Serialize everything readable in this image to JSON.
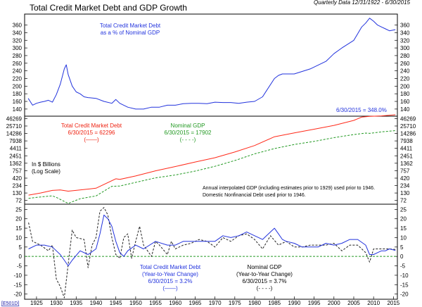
{
  "chart_data": {
    "type": "line",
    "title": "Total Credit Market Debt and GDP Growth",
    "subtitle": "Quarterly Data 12/31/1922 - 6/30/2015",
    "source_code": "[E501D]",
    "x_ticks": [
      "1925",
      "1930",
      "1935",
      "1940",
      "1945",
      "1950",
      "1955",
      "1960",
      "1965",
      "1970",
      "1975",
      "1980",
      "1985",
      "1990",
      "1995",
      "2000",
      "2005",
      "2010",
      "2015"
    ],
    "xlim": [
      1922,
      2016
    ],
    "colors": {
      "debt": "#ff2a1a",
      "gdp": "#229922",
      "ratio": "#2233dd",
      "growth_debt": "#2233dd",
      "growth_gdp": "#222222",
      "ann_blue": "#2233dd",
      "ann_red": "#ee2211",
      "ann_green": "#229922"
    },
    "panels": {
      "ratio": {
        "label": "Total Credit Market Debt\nas a % of Nominal GDP",
        "last_value_label": "6/30/2015 = 348.0%",
        "ylim": [
          125,
          385
        ],
        "y_ticks": [
          "140",
          "160",
          "180",
          "200",
          "220",
          "240",
          "260",
          "280",
          "300",
          "320",
          "340",
          "360"
        ],
        "series": [
          {
            "name": "Total Credit Market Debt as a % of Nominal GDP",
            "x": [
              1922.9,
              1924,
              1925,
              1926,
              1927,
              1928,
              1929,
              1930,
              1931,
              1932,
              1932.5,
              1933,
              1934,
              1935,
              1936,
              1937,
              1938,
              1940,
              1942,
              1944,
              1945,
              1946,
              1948,
              1950,
              1952,
              1954,
              1956,
              1958,
              1960,
              1962,
              1964,
              1966,
              1968,
              1970,
              1972,
              1974,
              1976,
              1978,
              1980,
              1982,
              1983,
              1985,
              1986,
              1987,
              1990,
              1994,
              1998,
              2000,
              2002,
              2005,
              2007,
              2008,
              2009,
              2010,
              2011,
              2012,
              2013,
              2014,
              2015.5
            ],
            "y": [
              168,
              150,
              155,
              158,
              160,
              163,
              158,
              178,
              205,
              245,
              256,
              230,
              200,
              185,
              180,
              172,
              170,
              168,
              160,
              155,
              165,
              155,
              145,
              140,
              140,
              145,
              145,
              150,
              150,
              154,
              155,
              155,
              154,
              158,
              157,
              157,
              155,
              158,
              160,
              172,
              188,
              220,
              228,
              232,
              232,
              245,
              265,
              285,
              300,
              320,
              355,
              365,
              378,
              370,
              360,
              355,
              350,
              345,
              348
            ]
          }
        ]
      },
      "levels": {
        "label": "In $ Billions\n(Log Scale)",
        "scale": "log",
        "ylim": [
          60,
          50000
        ],
        "y_ticks": [
          "72",
          "130",
          "234",
          "420",
          "757",
          "1362",
          "2451",
          "4411",
          "7938",
          "14286",
          "25710",
          "46269"
        ],
        "annotation_debt": "Total Credit Market Debt\n6/30/2015 = 62296\n(——)",
        "annotation_gdp": "Nominal GDP\n6/30/2015 = 17902\n(- - - -)",
        "note": "Annual interpolated GDP (including estimates prior to 1929) used prior to 1946.\nDomestic Nonfinancial Debt used prior to 1946.",
        "series": [
          {
            "name": "Total Credit Market Debt",
            "style": "solid",
            "x": [
              1923,
              1926,
              1929,
              1931,
              1933,
              1936,
              1940,
              1945,
              1946,
              1950,
              1955,
              1960,
              1965,
              1970,
              1975,
              1980,
              1985,
              1990,
              1995,
              2000,
              2005,
              2007,
              2009,
              2012,
              2015.5
            ],
            "y": [
              110,
              130,
              160,
              165,
              150,
              165,
              190,
              400,
              380,
              500,
              750,
              1050,
              1500,
              2100,
              3300,
              5500,
              11000,
              15000,
              20000,
              27000,
              40000,
              52000,
              55000,
              57000,
              62296
            ]
          },
          {
            "name": "Nominal GDP",
            "style": "dashed",
            "x": [
              1923,
              1926,
              1929,
              1930,
              1933,
              1936,
              1940,
              1944,
              1946,
              1950,
              1955,
              1960,
              1965,
              1970,
              1975,
              1980,
              1985,
              1990,
              1995,
              2000,
              2005,
              2008,
              2009,
              2012,
              2015.5
            ],
            "y": [
              85,
              95,
              104,
              92,
              57,
              83,
              103,
              220,
              225,
              300,
              430,
              540,
              730,
              1070,
              1680,
              2860,
              4340,
              5980,
              7660,
              10280,
              13090,
              14720,
              14420,
              16160,
              17902
            ]
          }
        ]
      },
      "growth": {
        "annotation_debt": "Total Credit Market Debt\n(Year-to-Year Change)\n6/30/2015 = 3.2%\n(——)",
        "annotation_gdp": "Nominal GDP\n(Year-to-Year Change)\n6/30/2015 = 3.7%\n(- - - -)",
        "ylim": [
          -22,
          27
        ],
        "y_ticks": [
          "-20",
          "-15",
          "-10",
          "-5",
          "0",
          "5",
          "10",
          "15",
          "20",
          "25"
        ],
        "baseline": 0,
        "series": [
          {
            "name": "Total Credit Market Debt (Year-to-Year Change)",
            "style": "solid",
            "x": [
              1923,
              1925,
              1927,
              1929,
              1930,
              1931,
              1932,
              1933,
              1934,
              1936,
              1938,
              1940,
              1941,
              1942,
              1943,
              1944,
              1945,
              1946,
              1947,
              1948,
              1950,
              1952,
              1955,
              1958,
              1960,
              1962,
              1965,
              1968,
              1970,
              1972,
              1974,
              1976,
              1978,
              1980,
              1982,
              1984,
              1985,
              1986,
              1987,
              1988,
              1990,
              1992,
              1994,
              1996,
              1998,
              2000,
              2002,
              2004,
              2006,
              2008,
              2009,
              2010,
              2011,
              2012,
              2013,
              2014,
              2015.5
            ],
            "y": [
              4,
              6,
              6,
              5,
              3,
              1,
              -2,
              -5,
              -2,
              3,
              1,
              4,
              12,
              22,
              20,
              16,
              8,
              2,
              0,
              3,
              6,
              4,
              8,
              6,
              6,
              8,
              8,
              8,
              8,
              11,
              10,
              11,
              13,
              11,
              9,
              13,
              15,
              12,
              9,
              8,
              7,
              5,
              5,
              5,
              7,
              6,
              7,
              9,
              9,
              6,
              1,
              1,
              2,
              3,
              3,
              4,
              3.2
            ]
          },
          {
            "name": "Nominal GDP (Year-to-Year Change)",
            "style": "dashed",
            "x": [
              1923,
              1924,
              1926,
              1928,
              1929,
              1930,
              1931,
              1932,
              1933,
              1934,
              1935,
              1937,
              1938,
              1939,
              1940,
              1941,
              1942,
              1943,
              1944,
              1945,
              1946,
              1947,
              1948,
              1949,
              1950,
              1951,
              1952,
              1954,
              1955,
              1956,
              1958,
              1959,
              1960,
              1962,
              1964,
              1966,
              1968,
              1970,
              1972,
              1974,
              1976,
              1978,
              1980,
              1982,
              1984,
              1986,
              1988,
              1990,
              1992,
              1994,
              1996,
              1998,
              2000,
              2002,
              2004,
              2006,
              2008,
              2009,
              2010,
              2012,
              2014,
              2015.5
            ],
            "y": [
              18,
              8,
              6,
              3,
              6,
              -12,
              -16,
              -22,
              -4,
              14,
              10,
              9,
              -6,
              6,
              10,
              24,
              26,
              22,
              10,
              1,
              -1,
              10,
              12,
              -1,
              8,
              16,
              6,
              0,
              8,
              6,
              1,
              8,
              4,
              6,
              7,
              9,
              8,
              5,
              10,
              8,
              11,
              12,
              9,
              4,
              11,
              6,
              8,
              5,
              5,
              6,
              6,
              6,
              7,
              3,
              6,
              6,
              2,
              -3,
              4,
              4,
              4,
              3.7
            ]
          }
        ]
      }
    }
  }
}
